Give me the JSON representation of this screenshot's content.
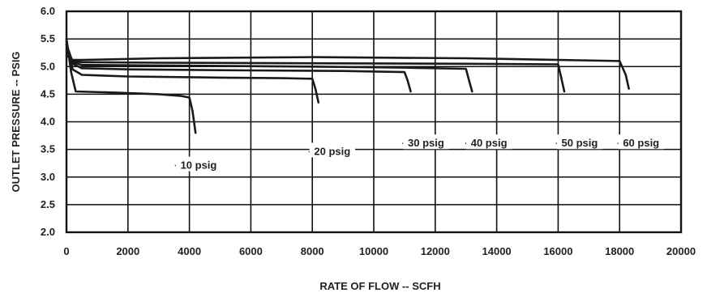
{
  "chart_data": {
    "type": "line",
    "title": "",
    "xlabel": "RATE OF FLOW -- SCFH",
    "ylabel": "OUTLET PRESSURE -- PSIG",
    "xlim": [
      0,
      20000
    ],
    "ylim": [
      2.0,
      6.0
    ],
    "x_ticks": [
      0,
      2000,
      4000,
      6000,
      8000,
      10000,
      12000,
      14000,
      16000,
      18000,
      20000
    ],
    "x_tick_labels": [
      "0",
      "2000",
      "4000",
      "6000",
      "8000",
      "10000",
      "12000",
      "14000",
      "16000",
      "18000",
      "20000"
    ],
    "y_ticks": [
      2.0,
      2.5,
      3.0,
      3.5,
      4.0,
      4.5,
      5.0,
      5.5,
      6.0
    ],
    "y_tick_labels": [
      "2.0",
      "2.5",
      "3.0",
      "3.5",
      "4.0",
      "4.5",
      "5.0",
      "5.5",
      "6.0"
    ],
    "grid": true,
    "series": [
      {
        "name": "10 psig",
        "label": "10 psig",
        "label_at": [
          4300,
          3.15
        ],
        "leader_from": 4150,
        "x": [
          0,
          150,
          300,
          1500,
          3000,
          3700,
          4000,
          4100,
          4200
        ],
        "y": [
          5.5,
          4.9,
          4.55,
          4.53,
          4.5,
          4.47,
          4.44,
          4.2,
          3.8
        ]
      },
      {
        "name": "20 psig",
        "label": "20 psig",
        "label_at": [
          8650,
          3.4
        ],
        "leader_from": 8200,
        "x": [
          0,
          200,
          500,
          2000,
          5000,
          7000,
          8000,
          8100,
          8200
        ],
        "y": [
          5.45,
          4.95,
          4.85,
          4.82,
          4.8,
          4.79,
          4.78,
          4.6,
          4.35
        ]
      },
      {
        "name": "30 psig",
        "label": "30 psig",
        "label_at": [
          11700,
          3.55
        ],
        "leader_from": 11200,
        "x": [
          0,
          200,
          500,
          2000,
          6000,
          9000,
          11000,
          11100,
          11200
        ],
        "y": [
          5.4,
          5.05,
          4.97,
          4.95,
          4.93,
          4.92,
          4.9,
          4.75,
          4.55
        ]
      },
      {
        "name": "40 psig",
        "label": "40 psig",
        "label_at": [
          13750,
          3.55
        ],
        "leader_from": 13200,
        "x": [
          0,
          200,
          500,
          3000,
          8000,
          11000,
          13000,
          13100,
          13200
        ],
        "y": [
          5.4,
          5.08,
          5.03,
          5.02,
          5.0,
          4.98,
          4.96,
          4.75,
          4.55
        ]
      },
      {
        "name": "50 psig",
        "label": "50 psig",
        "label_at": [
          16700,
          3.55
        ],
        "leader_from": 16200,
        "x": [
          0,
          200,
          500,
          3000,
          8000,
          13000,
          16000,
          16100,
          16200
        ],
        "y": [
          5.3,
          5.1,
          5.08,
          5.07,
          5.06,
          5.05,
          5.04,
          4.8,
          4.55
        ]
      },
      {
        "name": "60 psig",
        "label": "60 psig",
        "label_at": [
          18700,
          3.55
        ],
        "leader_from": 18300,
        "x": [
          0,
          200,
          500,
          3000,
          8000,
          13000,
          18000,
          18200,
          18300
        ],
        "y": [
          5.2,
          5.12,
          5.12,
          5.15,
          5.17,
          5.15,
          5.1,
          4.85,
          4.6
        ]
      }
    ],
    "colors": {
      "line": "#1a1a1a",
      "grid": "#111111",
      "background": "#ffffff"
    }
  }
}
